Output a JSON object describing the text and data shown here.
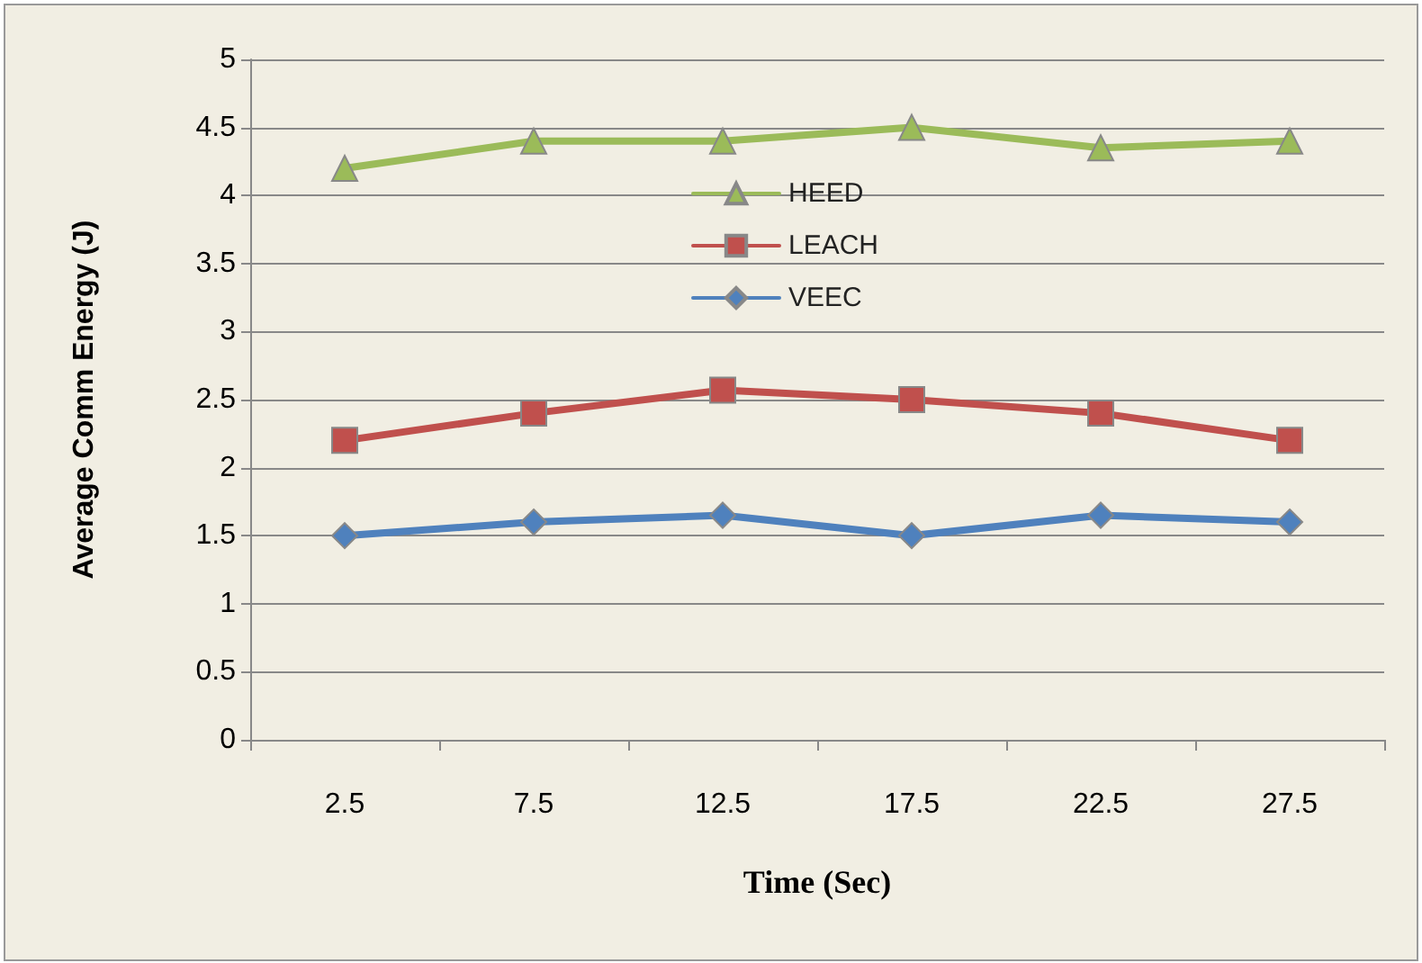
{
  "chart_data": {
    "type": "line",
    "xlabel": "Time (Sec)",
    "ylabel": "Average Comm Energy (J)",
    "categories": [
      "2.5",
      "7.5",
      "12.5",
      "17.5",
      "22.5",
      "27.5"
    ],
    "series": [
      {
        "name": "HEED",
        "color": "#9bbb59",
        "marker": "triangle",
        "values": [
          4.2,
          4.4,
          4.4,
          4.5,
          4.35,
          4.4
        ]
      },
      {
        "name": "LEACH",
        "color": "#c0504d",
        "marker": "square",
        "values": [
          2.2,
          2.4,
          2.57,
          2.5,
          2.4,
          2.2
        ]
      },
      {
        "name": "VEEC",
        "color": "#4f81bd",
        "marker": "diamond",
        "values": [
          1.5,
          1.6,
          1.65,
          1.5,
          1.65,
          1.6
        ]
      }
    ],
    "ylim": [
      0,
      5
    ],
    "yticks": [
      0,
      0.5,
      1,
      1.5,
      2,
      2.5,
      3,
      3.5,
      4,
      4.5,
      5
    ],
    "grid": "y",
    "legend": "top",
    "line_style": "solid"
  }
}
